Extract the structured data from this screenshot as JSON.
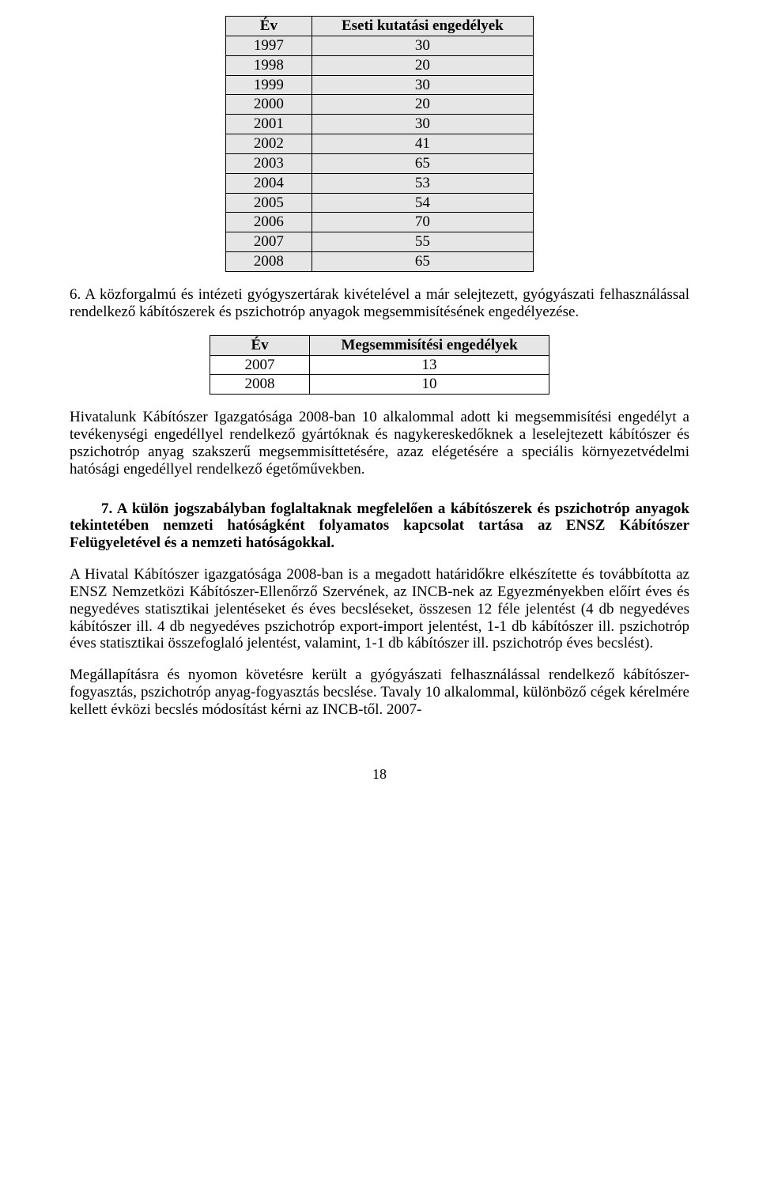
{
  "table1": {
    "headers": [
      "Év",
      "Eseti kutatási engedélyek"
    ],
    "rows": [
      [
        "1997",
        "30"
      ],
      [
        "1998",
        "20"
      ],
      [
        "1999",
        "30"
      ],
      [
        "2000",
        "20"
      ],
      [
        "2001",
        "30"
      ],
      [
        "2002",
        "41"
      ],
      [
        "2003",
        "65"
      ],
      [
        "2004",
        "53"
      ],
      [
        "2005",
        "54"
      ],
      [
        "2006",
        "70"
      ],
      [
        "2007",
        "55"
      ],
      [
        "2008",
        "65"
      ]
    ],
    "shaded_indices": [
      0,
      1,
      2,
      3,
      4,
      5,
      6,
      7,
      8,
      9,
      10,
      11
    ],
    "unshaded_indices": []
  },
  "para6": "6. A közforgalmú és intézeti gyógyszertárak kivételével a már selejtezett, gyógyászati felhasználással rendelkező kábítószerek és pszichotróp anyagok megsemmisítésének engedélyezése.",
  "table2": {
    "headers": [
      "Év",
      "Megsemmisítési engedélyek"
    ],
    "rows": [
      [
        "2007",
        "13"
      ],
      [
        "2008",
        "10"
      ]
    ]
  },
  "para_hivatalunk": "Hivatalunk Kábítószer Igazgatósága 2008-ban 10 alkalommal adott ki megsemmisítési engedélyt a tevékenységi engedéllyel rendelkező gyártóknak és nagykereskedőknek a leselejtezett kábítószer és pszichotróp anyag szakszerű megsemmisíttetésére, azaz elégetésére a speciális környezetvédelmi hatósági engedéllyel rendelkező égetőművekben.",
  "heading7": "7. A külön jogszabályban foglaltaknak megfelelően a kábítószerek és pszichotróp anyagok tekintetében nemzeti hatóságként folyamatos kapcsolat tartása az ENSZ Kábítószer Felügyeletével és a nemzeti hatóságokkal.",
  "para_hivatal": "A Hivatal Kábítószer igazgatósága 2008-ban is a megadott határidőkre elkészítette és továbbította az ENSZ Nemzetközi Kábítószer-Ellenőrző Szervének, az INCB-nek az Egyezményekben előírt éves és negyedéves statisztikai jelentéseket és éves becsléseket, összesen 12 féle jelentést (4 db negyedéves kábítószer ill. 4 db negyedéves pszichotróp export-import jelentést, 1-1 db kábítószer ill. pszichotróp éves statisztikai összefoglaló jelentést, valamint, 1-1 db kábítószer ill. pszichotróp éves becslést).",
  "para_megall": "Megállapításra és nyomon követésre került a gyógyászati felhasználással rendelkező kábítószer-fogyasztás, pszichotróp anyag-fogyasztás becslése. Tavaly 10 alkalommal, különböző cégek kérelmére kellett évközi becslés módosítást kérni az INCB-től. 2007-",
  "page_number": "18"
}
